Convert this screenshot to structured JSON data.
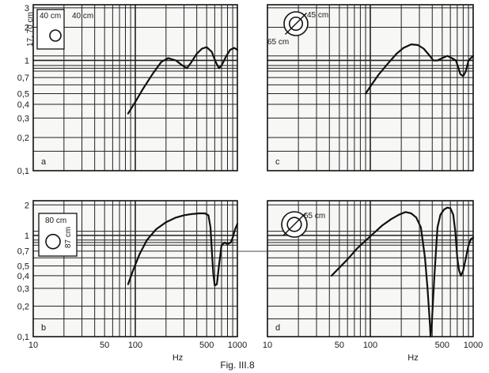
{
  "figure": {
    "caption": "Fig. III.8"
  },
  "chart_data": [
    {
      "type": "line",
      "panel_label": "a",
      "inset_labels": [
        "17, 70 cm",
        "40 cm",
        "40 cm"
      ],
      "xscale": "log",
      "yscale": "log",
      "xlim": [
        10,
        1000
      ],
      "ylim": [
        0.1,
        3.2
      ],
      "yticks": [
        "3",
        "2",
        "1",
        "0,7",
        "0,5",
        "0,4",
        "0,3",
        "0,2",
        "0,1"
      ],
      "xticks": [],
      "xlabel": "",
      "grid": true,
      "series": [
        {
          "values": [
            [
              85,
              0.33
            ],
            [
              100,
              0.42
            ],
            [
              120,
              0.56
            ],
            [
              150,
              0.77
            ],
            [
              180,
              0.97
            ],
            [
              210,
              1.05
            ],
            [
              250,
              1.0
            ],
            [
              290,
              0.9
            ],
            [
              320,
              0.85
            ],
            [
              350,
              0.95
            ],
            [
              400,
              1.15
            ],
            [
              450,
              1.28
            ],
            [
              500,
              1.32
            ],
            [
              560,
              1.2
            ],
            [
              620,
              0.95
            ],
            [
              660,
              0.85
            ],
            [
              700,
              0.9
            ],
            [
              780,
              1.1
            ],
            [
              850,
              1.25
            ],
            [
              930,
              1.3
            ],
            [
              1000,
              1.25
            ]
          ]
        }
      ]
    },
    {
      "type": "line",
      "panel_label": "c",
      "inset_labels": [
        "45 cm",
        "65 cm"
      ],
      "xscale": "log",
      "yscale": "log",
      "xlim": [
        10,
        1000
      ],
      "ylim": [
        0.1,
        3.2
      ],
      "yticks": [],
      "xticks": [],
      "xlabel": "",
      "grid": true,
      "series": [
        {
          "values": [
            [
              90,
              0.5
            ],
            [
              100,
              0.58
            ],
            [
              120,
              0.74
            ],
            [
              150,
              0.95
            ],
            [
              180,
              1.15
            ],
            [
              210,
              1.3
            ],
            [
              250,
              1.4
            ],
            [
              290,
              1.38
            ],
            [
              330,
              1.28
            ],
            [
              370,
              1.13
            ],
            [
              410,
              1.0
            ],
            [
              450,
              1.0
            ],
            [
              500,
              1.05
            ],
            [
              560,
              1.1
            ],
            [
              620,
              1.05
            ],
            [
              680,
              1.0
            ],
            [
              720,
              0.85
            ],
            [
              750,
              0.75
            ],
            [
              800,
              0.72
            ],
            [
              850,
              0.8
            ],
            [
              900,
              1.0
            ],
            [
              1000,
              1.1
            ]
          ]
        }
      ]
    },
    {
      "type": "line",
      "panel_label": "b",
      "inset_labels": [
        "80 cm",
        "87 cm"
      ],
      "xscale": "log",
      "yscale": "log",
      "xlim": [
        10,
        1000
      ],
      "ylim": [
        0.1,
        2.2
      ],
      "yticks": [
        "2",
        "1",
        "0,7",
        "0,5",
        "0,4",
        "0,3",
        "0,2",
        "0,1"
      ],
      "xticks": [
        "10",
        "50",
        "100",
        "500",
        "1000"
      ],
      "xlabel": "Hz",
      "grid": true,
      "series": [
        {
          "values": [
            [
              85,
              0.33
            ],
            [
              95,
              0.45
            ],
            [
              110,
              0.65
            ],
            [
              130,
              0.9
            ],
            [
              160,
              1.15
            ],
            [
              200,
              1.35
            ],
            [
              250,
              1.5
            ],
            [
              300,
              1.58
            ],
            [
              350,
              1.62
            ],
            [
              420,
              1.65
            ],
            [
              480,
              1.65
            ],
            [
              520,
              1.58
            ],
            [
              545,
              1.2
            ],
            [
              565,
              0.65
            ],
            [
              580,
              0.42
            ],
            [
              600,
              0.32
            ],
            [
              630,
              0.33
            ],
            [
              660,
              0.5
            ],
            [
              700,
              0.8
            ],
            [
              750,
              0.85
            ],
            [
              800,
              0.82
            ],
            [
              860,
              0.85
            ],
            [
              900,
              0.95
            ],
            [
              950,
              1.15
            ],
            [
              1000,
              1.3
            ]
          ]
        }
      ]
    },
    {
      "type": "line",
      "panel_label": "d",
      "inset_labels": [
        "65 cm"
      ],
      "xscale": "log",
      "yscale": "log",
      "xlim": [
        10,
        1000
      ],
      "ylim": [
        0.1,
        2.2
      ],
      "yticks": [],
      "xticks": [
        "10",
        "50",
        "100",
        "500",
        "1000"
      ],
      "xlabel": "Hz",
      "grid": true,
      "series": [
        {
          "values": [
            [
              42,
              0.4
            ],
            [
              50,
              0.48
            ],
            [
              60,
              0.58
            ],
            [
              75,
              0.75
            ],
            [
              100,
              0.98
            ],
            [
              130,
              1.25
            ],
            [
              160,
              1.45
            ],
            [
              190,
              1.6
            ],
            [
              220,
              1.7
            ],
            [
              250,
              1.65
            ],
            [
              280,
              1.5
            ],
            [
              310,
              1.2
            ],
            [
              340,
              0.6
            ],
            [
              360,
              0.3
            ],
            [
              380,
              0.13
            ],
            [
              385,
              0.1
            ],
            [
              395,
              0.13
            ],
            [
              420,
              0.4
            ],
            [
              450,
              1.2
            ],
            [
              480,
              1.6
            ],
            [
              520,
              1.8
            ],
            [
              560,
              1.88
            ],
            [
              600,
              1.85
            ],
            [
              640,
              1.6
            ],
            [
              670,
              1.1
            ],
            [
              700,
              0.6
            ],
            [
              730,
              0.45
            ],
            [
              760,
              0.4
            ],
            [
              800,
              0.45
            ],
            [
              850,
              0.6
            ],
            [
              900,
              0.8
            ],
            [
              950,
              0.92
            ],
            [
              1000,
              0.95
            ]
          ]
        }
      ]
    }
  ]
}
